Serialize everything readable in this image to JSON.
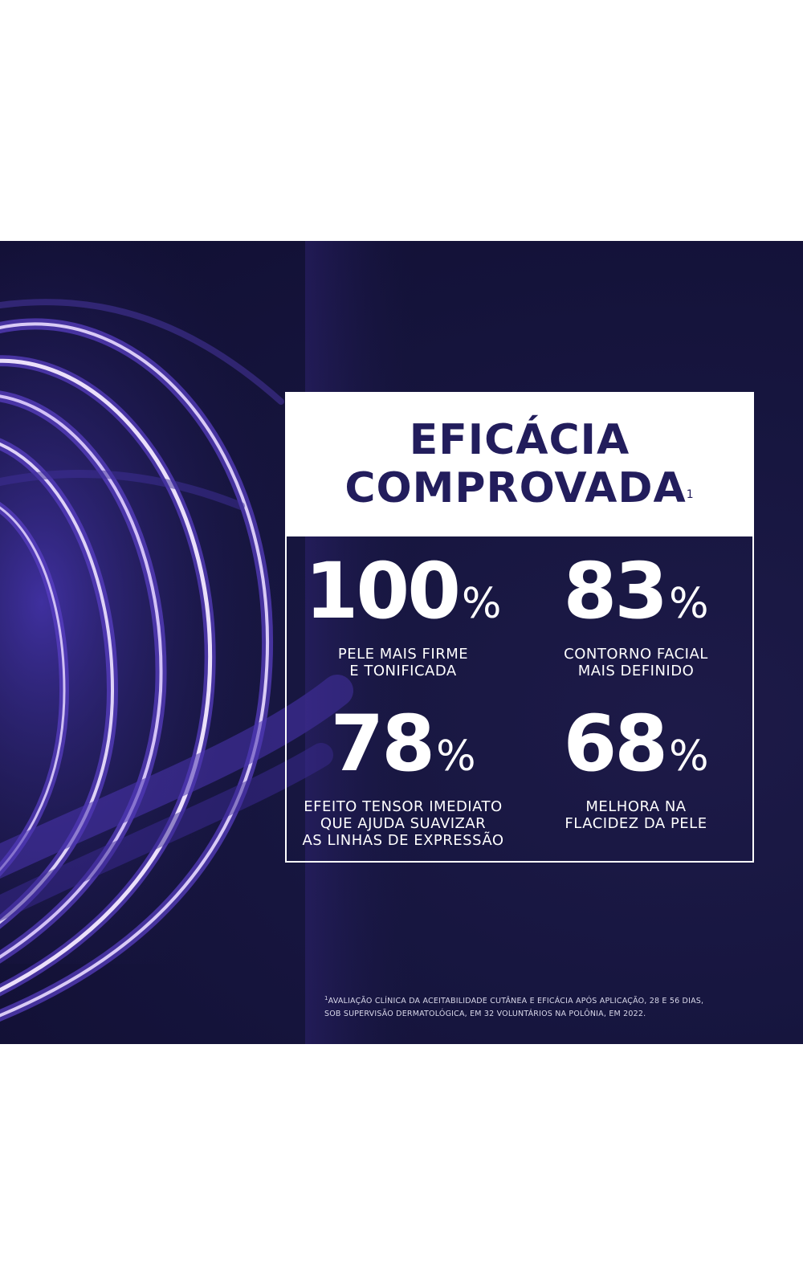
{
  "header": {
    "title_line1": "EFICÁCIA",
    "title_line2": "COMPROVADA",
    "title_footnote_mark": "1"
  },
  "stats": [
    {
      "value": "100",
      "unit": "%",
      "desc_line1": "PELE MAIS FIRME",
      "desc_line2": "E TONIFICADA",
      "desc_line3": ""
    },
    {
      "value": "83",
      "unit": "%",
      "desc_line1": "CONTORNO FACIAL",
      "desc_line2": "MAIS DEFINIDO",
      "desc_line3": ""
    },
    {
      "value": "78",
      "unit": "%",
      "desc_line1": "EFEITO TENSOR IMEDIATO",
      "desc_line2": "QUE AJUDA SUAVIZAR",
      "desc_line3": "AS LINHAS DE EXPRESSÃO"
    },
    {
      "value": "68",
      "unit": "%",
      "desc_line1": "MELHORA NA",
      "desc_line2": "FLACIDEZ DA PELE",
      "desc_line3": ""
    }
  ],
  "footnote": {
    "mark": "1",
    "line1": "AVALIAÇÃO CLÍNICA DA ACEITABILIDADE CUTÂNEA E EFICÁCIA APÓS APLICAÇÃO, 28 E 56 DIAS,",
    "line2": "SOB SUPERVISÃO DERMATOLÓGICA, EM 32 VOLUNTÁRIOS NA POLÔNIA, EM 2022."
  },
  "colors": {
    "background": "#171640",
    "title_text": "#221d5c",
    "coil": "#6b4fd8",
    "coil_highlight": "#f2e6ff"
  }
}
